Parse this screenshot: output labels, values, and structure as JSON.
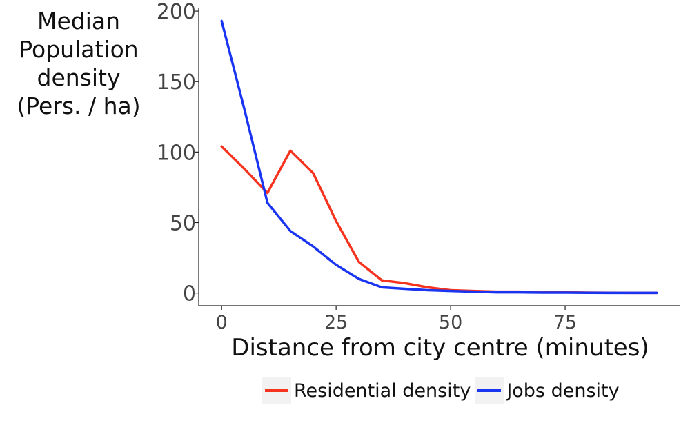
{
  "chart_data": {
    "type": "line",
    "title": "",
    "xlabel": "Distance from city centre (minutes)",
    "ylabel_lines": [
      "Median",
      "Population",
      "density",
      "(Pers. / ha)"
    ],
    "x_ticks": [
      "0",
      "25",
      "50",
      "75"
    ],
    "y_ticks": [
      "0",
      "50",
      "100",
      "150",
      "200"
    ],
    "xlim": [
      -5,
      100
    ],
    "ylim": [
      -9,
      202
    ],
    "grid": false,
    "legend_position": "bottom",
    "series": [
      {
        "name": "Residential density",
        "color": "#f5331f",
        "x": [
          0,
          5,
          10,
          15,
          20,
          25,
          30,
          35,
          40,
          45,
          50,
          55,
          60,
          65,
          70,
          75,
          80,
          85,
          90,
          95
        ],
        "values": [
          104,
          88,
          71,
          101,
          85,
          51,
          22,
          9,
          7,
          4,
          2,
          1.5,
          1,
          1,
          0.5,
          0.5,
          0.3,
          0.2,
          0.1,
          0.1
        ]
      },
      {
        "name": "Jobs density",
        "color": "#1a35f2",
        "x": [
          0,
          5,
          10,
          15,
          20,
          25,
          30,
          35,
          40,
          45,
          50,
          55,
          60,
          65,
          70,
          75,
          80,
          85,
          90,
          95
        ],
        "values": [
          193,
          130,
          64,
          44,
          33,
          20,
          10,
          4,
          3,
          2,
          1.5,
          1,
          0.5,
          0.5,
          0.3,
          0.3,
          0.2,
          0.1,
          0.1,
          0.1
        ]
      }
    ]
  }
}
